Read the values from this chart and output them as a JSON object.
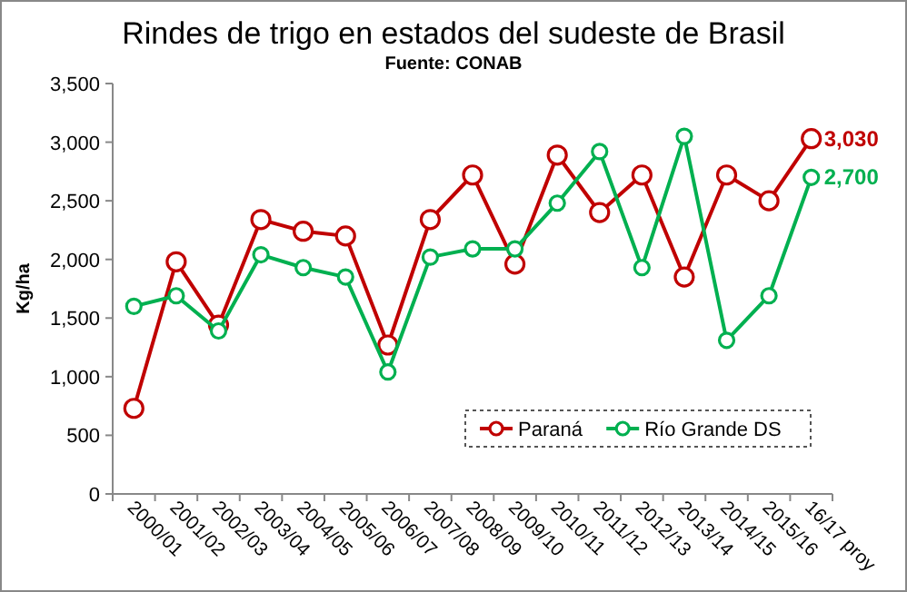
{
  "chart_data": {
    "type": "line",
    "title": "Rindes de trigo en estados del sudeste de Brasil",
    "subtitle": "Fuente: CONAB",
    "ylabel": "Kg/ha",
    "categories": [
      "2000/01",
      "2001/02",
      "2002/03",
      "2003/04",
      "2004/05",
      "2005/06",
      "2006/07",
      "2007/08",
      "2008/09",
      "2009/10",
      "2010/11",
      "2011/12",
      "2012/13",
      "2013/14",
      "2014/15",
      "2015/16",
      "16/17 proy"
    ],
    "series": [
      {
        "name": "Paraná",
        "color": "#c00000",
        "values": [
          730,
          1980,
          1440,
          2340,
          2240,
          2200,
          1270,
          2340,
          2720,
          1960,
          2890,
          2400,
          2720,
          1850,
          2720,
          2500,
          3030
        ],
        "value_labels": [
          null,
          null,
          null,
          null,
          null,
          null,
          null,
          null,
          null,
          null,
          null,
          null,
          null,
          null,
          null,
          null,
          "3,030"
        ]
      },
      {
        "name": "Río Grande DS",
        "color": "#00b050",
        "values": [
          1600,
          1690,
          1390,
          2040,
          1930,
          1850,
          1040,
          2020,
          2090,
          2090,
          2480,
          2920,
          1930,
          3050,
          1310,
          1690,
          2700
        ],
        "value_labels": [
          null,
          null,
          null,
          null,
          null,
          null,
          null,
          null,
          null,
          null,
          null,
          null,
          null,
          null,
          null,
          null,
          "2,700"
        ]
      }
    ],
    "ylim": [
      0,
      3500
    ],
    "yticks": [
      {
        "value": 0,
        "label": "0"
      },
      {
        "value": 500,
        "label": "500"
      },
      {
        "value": 1000,
        "label": "1,000"
      },
      {
        "value": 1500,
        "label": "1,500"
      },
      {
        "value": 2000,
        "label": "2,000"
      },
      {
        "value": 2500,
        "label": "2,500"
      },
      {
        "value": 3000,
        "label": "3,000"
      },
      {
        "value": 3500,
        "label": "3,500"
      }
    ],
    "grid": false,
    "legend": "bottom right",
    "marker": "circle",
    "line_style": "solid"
  }
}
